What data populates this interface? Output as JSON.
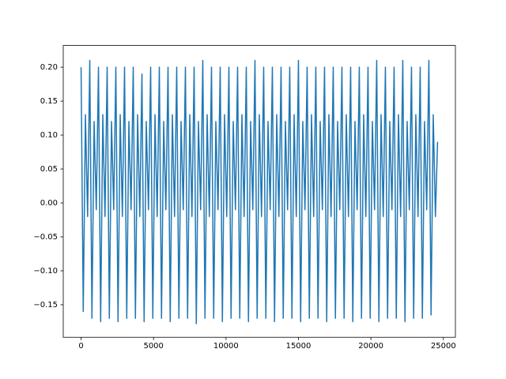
{
  "chart_data": {
    "type": "line",
    "color": "#1f77b4",
    "x": [
      0,
      150,
      300,
      450,
      600,
      750,
      900,
      1050,
      1200,
      1350,
      1500,
      1650,
      1800,
      1950,
      2100,
      2250,
      2400,
      2550,
      2700,
      2850,
      3000,
      3150,
      3300,
      3450,
      3600,
      3750,
      3900,
      4050,
      4200,
      4350,
      4500,
      4650,
      4800,
      4950,
      5100,
      5250,
      5400,
      5550,
      5700,
      5850,
      6000,
      6150,
      6300,
      6450,
      6600,
      6750,
      6900,
      7050,
      7200,
      7350,
      7500,
      7650,
      7800,
      7950,
      8100,
      8250,
      8400,
      8550,
      8700,
      8850,
      9000,
      9150,
      9300,
      9450,
      9600,
      9750,
      9900,
      10050,
      10200,
      10350,
      10500,
      10650,
      10800,
      10950,
      11100,
      11250,
      11400,
      11550,
      11700,
      11850,
      12000,
      12150,
      12300,
      12450,
      12600,
      12750,
      12900,
      13050,
      13200,
      13350,
      13500,
      13650,
      13800,
      13950,
      14100,
      14250,
      14400,
      14550,
      14700,
      14850,
      15000,
      15150,
      15300,
      15450,
      15600,
      15750,
      15900,
      16050,
      16200,
      16350,
      16500,
      16650,
      16800,
      16950,
      17100,
      17250,
      17400,
      17550,
      17700,
      17850,
      18000,
      18150,
      18300,
      18450,
      18600,
      18750,
      18900,
      19050,
      19200,
      19350,
      19500,
      19650,
      19800,
      19950,
      20100,
      20250,
      20400,
      20550,
      20700,
      20850,
      21000,
      21150,
      21300,
      21450,
      21600,
      21750,
      21900,
      22050,
      22200,
      22350,
      22500,
      22650,
      22800,
      22950,
      23100,
      23250,
      23400,
      23550,
      23700,
      23850,
      24000,
      24150,
      24300,
      24450,
      24600
    ],
    "values": [
      0.2,
      -0.16,
      0.13,
      -0.02,
      0.21,
      -0.17,
      0.12,
      -0.01,
      0.2,
      -0.175,
      0.13,
      -0.02,
      0.2,
      -0.17,
      0.12,
      -0.01,
      0.2,
      -0.175,
      0.13,
      -0.02,
      0.2,
      -0.17,
      0.12,
      -0.01,
      0.2,
      -0.17,
      0.13,
      -0.02,
      0.19,
      -0.175,
      0.12,
      -0.01,
      0.2,
      -0.17,
      0.13,
      -0.02,
      0.2,
      -0.17,
      0.12,
      -0.01,
      0.2,
      -0.175,
      0.13,
      -0.02,
      0.2,
      -0.17,
      0.12,
      -0.01,
      0.2,
      -0.17,
      0.13,
      -0.02,
      0.2,
      -0.178,
      0.12,
      -0.01,
      0.21,
      -0.17,
      0.13,
      -0.02,
      0.2,
      -0.17,
      0.12,
      -0.01,
      0.2,
      -0.175,
      0.13,
      -0.02,
      0.2,
      -0.17,
      0.12,
      -0.01,
      0.2,
      -0.17,
      0.13,
      -0.02,
      0.2,
      -0.175,
      0.12,
      -0.01,
      0.21,
      -0.17,
      0.13,
      -0.02,
      0.2,
      -0.17,
      0.12,
      -0.01,
      0.2,
      -0.175,
      0.13,
      -0.02,
      0.2,
      -0.17,
      0.12,
      -0.01,
      0.2,
      -0.17,
      0.13,
      -0.02,
      0.21,
      -0.175,
      0.12,
      -0.01,
      0.2,
      -0.17,
      0.13,
      -0.02,
      0.2,
      -0.17,
      0.12,
      -0.01,
      0.2,
      -0.175,
      0.13,
      -0.02,
      0.2,
      -0.17,
      0.12,
      -0.01,
      0.2,
      -0.17,
      0.13,
      -0.02,
      0.2,
      -0.175,
      0.12,
      -0.01,
      0.2,
      -0.17,
      0.13,
      -0.02,
      0.2,
      -0.17,
      0.12,
      -0.01,
      0.21,
      -0.175,
      0.13,
      -0.02,
      0.2,
      -0.17,
      0.12,
      -0.01,
      0.2,
      -0.17,
      0.13,
      -0.02,
      0.21,
      -0.175,
      0.12,
      -0.01,
      0.2,
      -0.17,
      0.13,
      -0.02,
      0.2,
      -0.17,
      0.12,
      -0.01,
      0.21,
      -0.165,
      0.13,
      -0.02,
      0.09
    ],
    "xlim": [
      -1230,
      25830
    ],
    "xticks": [
      0,
      5000,
      10000,
      15000,
      20000,
      25000
    ],
    "ylim": [
      -0.198,
      0.232
    ],
    "yticks": [
      {
        "value": -0.15,
        "label": "−0.15"
      },
      {
        "value": -0.1,
        "label": "−0.10"
      },
      {
        "value": -0.05,
        "label": "−0.05"
      },
      {
        "value": 0,
        "label": "0.00"
      },
      {
        "value": 0.05,
        "label": "0.05"
      },
      {
        "value": 0.1,
        "label": "0.10"
      },
      {
        "value": 0.15,
        "label": "0.15"
      },
      {
        "value": 0.2,
        "label": "0.20"
      }
    ],
    "grid": false
  }
}
